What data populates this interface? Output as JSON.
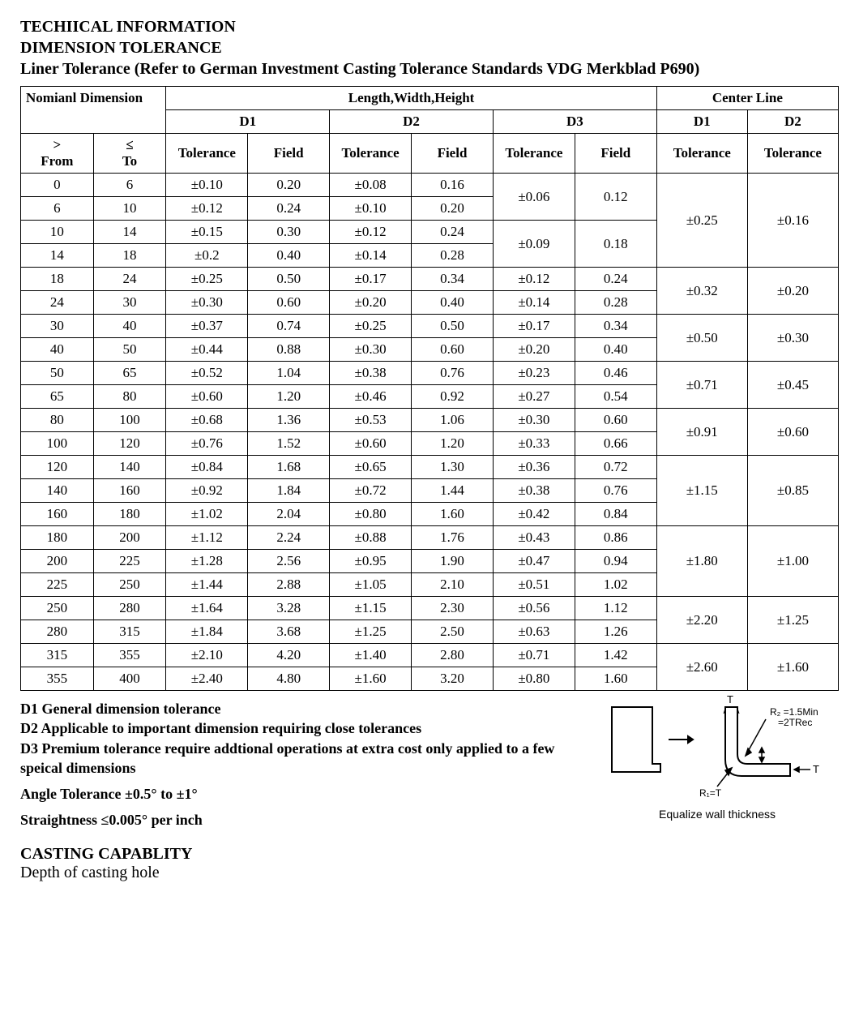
{
  "headings": {
    "line1": "TECHIICAL INFORMATION",
    "line2": "DIMENSION TOLERANCE",
    "line3": "Liner Tolerance (Refer to German Investment Casting Tolerance Standards VDG Merkblad P690)"
  },
  "table": {
    "header": {
      "nominal": "Nomianl Dimension",
      "lwh": "Length,Width,Height",
      "center": "Center Line",
      "d1": "D1",
      "d2": "D2",
      "d3": "D3",
      "from_sym": ">",
      "from_label": "From",
      "to_sym": "≤",
      "to_label": "To",
      "tol": "Tolerance",
      "field": "Field"
    },
    "rows": [
      {
        "from": "0",
        "to": "6",
        "d1t": "±0.10",
        "d1f": "0.20",
        "d2t": "±0.08",
        "d2f": "0.16"
      },
      {
        "from": "6",
        "to": "10",
        "d1t": "±0.12",
        "d1f": "0.24",
        "d2t": "±0.10",
        "d2f": "0.20"
      },
      {
        "from": "10",
        "to": "14",
        "d1t": "±0.15",
        "d1f": "0.30",
        "d2t": "±0.12",
        "d2f": "0.24"
      },
      {
        "from": "14",
        "to": "18",
        "d1t": "±0.2",
        "d1f": "0.40",
        "d2t": "±0.14",
        "d2f": "0.28"
      },
      {
        "from": "18",
        "to": "24",
        "d1t": "±0.25",
        "d1f": "0.50",
        "d2t": "±0.17",
        "d2f": "0.34",
        "d3t": "±0.12",
        "d3f": "0.24"
      },
      {
        "from": "24",
        "to": "30",
        "d1t": "±0.30",
        "d1f": "0.60",
        "d2t": "±0.20",
        "d2f": "0.40",
        "d3t": "±0.14",
        "d3f": "0.28"
      },
      {
        "from": "30",
        "to": "40",
        "d1t": "±0.37",
        "d1f": "0.74",
        "d2t": "±0.25",
        "d2f": "0.50",
        "d3t": "±0.17",
        "d3f": "0.34"
      },
      {
        "from": "40",
        "to": "50",
        "d1t": "±0.44",
        "d1f": "0.88",
        "d2t": "±0.30",
        "d2f": "0.60",
        "d3t": "±0.20",
        "d3f": "0.40"
      },
      {
        "from": "50",
        "to": "65",
        "d1t": "±0.52",
        "d1f": "1.04",
        "d2t": "±0.38",
        "d2f": "0.76",
        "d3t": "±0.23",
        "d3f": "0.46"
      },
      {
        "from": "65",
        "to": "80",
        "d1t": "±0.60",
        "d1f": "1.20",
        "d2t": "±0.46",
        "d2f": "0.92",
        "d3t": "±0.27",
        "d3f": "0.54"
      },
      {
        "from": "80",
        "to": "100",
        "d1t": "±0.68",
        "d1f": "1.36",
        "d2t": "±0.53",
        "d2f": "1.06",
        "d3t": "±0.30",
        "d3f": "0.60"
      },
      {
        "from": "100",
        "to": "120",
        "d1t": "±0.76",
        "d1f": "1.52",
        "d2t": "±0.60",
        "d2f": "1.20",
        "d3t": "±0.33",
        "d3f": "0.66"
      },
      {
        "from": "120",
        "to": "140",
        "d1t": "±0.84",
        "d1f": "1.68",
        "d2t": "±0.65",
        "d2f": "1.30",
        "d3t": "±0.36",
        "d3f": "0.72"
      },
      {
        "from": "140",
        "to": "160",
        "d1t": "±0.92",
        "d1f": "1.84",
        "d2t": "±0.72",
        "d2f": "1.44",
        "d3t": "±0.38",
        "d3f": "0.76"
      },
      {
        "from": "160",
        "to": "180",
        "d1t": "±1.02",
        "d1f": "2.04",
        "d2t": "±0.80",
        "d2f": "1.60",
        "d3t": "±0.42",
        "d3f": "0.84"
      },
      {
        "from": "180",
        "to": "200",
        "d1t": "±1.12",
        "d1f": "2.24",
        "d2t": "±0.88",
        "d2f": "1.76",
        "d3t": "±0.43",
        "d3f": "0.86"
      },
      {
        "from": "200",
        "to": "225",
        "d1t": "±1.28",
        "d1f": "2.56",
        "d2t": "±0.95",
        "d2f": "1.90",
        "d3t": "±0.47",
        "d3f": "0.94"
      },
      {
        "from": "225",
        "to": "250",
        "d1t": "±1.44",
        "d1f": "2.88",
        "d2t": "±1.05",
        "d2f": "2.10",
        "d3t": "±0.51",
        "d3f": "1.02"
      },
      {
        "from": "250",
        "to": "280",
        "d1t": "±1.64",
        "d1f": "3.28",
        "d2t": "±1.15",
        "d2f": "2.30",
        "d3t": "±0.56",
        "d3f": "1.12"
      },
      {
        "from": "280",
        "to": "315",
        "d1t": "±1.84",
        "d1f": "3.68",
        "d2t": "±1.25",
        "d2f": "2.50",
        "d3t": "±0.63",
        "d3f": "1.26"
      },
      {
        "from": "315",
        "to": "355",
        "d1t": "±2.10",
        "d1f": "4.20",
        "d2t": "±1.40",
        "d2f": "2.80",
        "d3t": "±0.71",
        "d3f": "1.42"
      },
      {
        "from": "355",
        "to": "400",
        "d1t": "±2.40",
        "d1f": "4.80",
        "d2t": "±1.60",
        "d2f": "3.20",
        "d3t": "±0.80",
        "d3f": "1.60"
      }
    ],
    "d3_merged": [
      {
        "start": 0,
        "span": 2,
        "t": "±0.06",
        "f": "0.12"
      },
      {
        "start": 2,
        "span": 2,
        "t": "±0.09",
        "f": "0.18"
      }
    ],
    "center_merged": [
      {
        "start": 0,
        "span": 4,
        "c1": "±0.25",
        "c2": "±0.16"
      },
      {
        "start": 4,
        "span": 2,
        "c1": "±0.32",
        "c2": "±0.20"
      },
      {
        "start": 6,
        "span": 2,
        "c1": "±0.50",
        "c2": "±0.30"
      },
      {
        "start": 8,
        "span": 2,
        "c1": "±0.71",
        "c2": "±0.45"
      },
      {
        "start": 10,
        "span": 2,
        "c1": "±0.91",
        "c2": "±0.60"
      },
      {
        "start": 12,
        "span": 3,
        "c1": "±1.15",
        "c2": "±0.85"
      },
      {
        "start": 15,
        "span": 3,
        "c1": "±1.80",
        "c2": "±1.00"
      },
      {
        "start": 18,
        "span": 2,
        "c1": "±2.20",
        "c2": "±1.25"
      },
      {
        "start": 20,
        "span": 2,
        "c1": "±2.60",
        "c2": "±1.60"
      }
    ]
  },
  "notes": {
    "d1": "D1 General dimension tolerance",
    "d2": "D2 Applicable to important dimension requiring close tolerances",
    "d3": "D3 Premium tolerance require addtional operations at extra cost only applied to a few speical dimensions",
    "angle": "Angle Tolerance ±0.5° to ±1°",
    "straight": "Straightness ≤0.005° per inch"
  },
  "casting": {
    "title": "CASTING CAPABLITY",
    "sub": "Depth of casting hole"
  },
  "diagram": {
    "t_label": "T",
    "r2_line1": "R₂ =1.5Min",
    "r2_line2": "=2TRec",
    "r1_label": "R₁=T",
    "t_right": "T",
    "caption": "Equalize wall thickness"
  }
}
